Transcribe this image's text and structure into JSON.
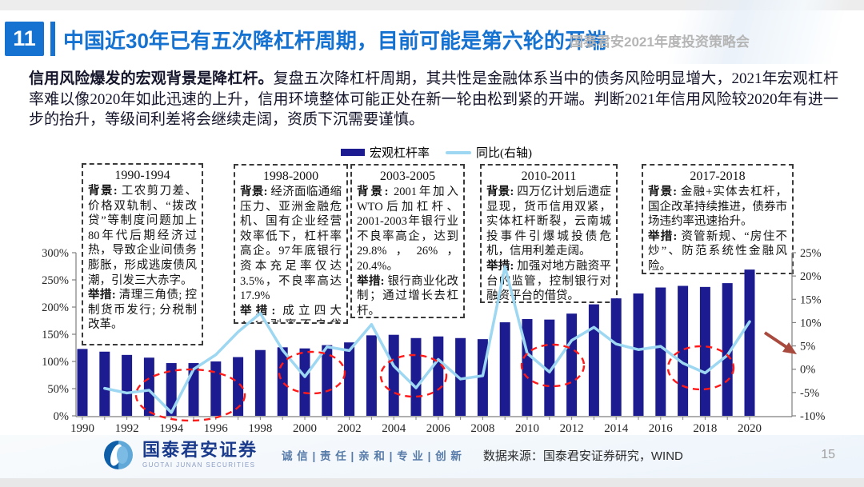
{
  "header": {
    "number": "11",
    "title": "中国近30年已有五次降杠杆周期，目前可能是第六轮的开端",
    "conference": "国泰君安2021年度投资策略会"
  },
  "intro": {
    "lead": "信用风险爆发的宏观背景是降杠杆。",
    "body": "复盘五次降杠杆周期，其共性是金融体系当中的债务风险明显增大，2021年宏观杠杆率难以像2020年如此迅速的上升，信用环境整体可能正处在新一轮由松到紧的开端。判断2021年信用风险较2020年有进一步的抬升，等级间利差将会继续走阔，资质下沉需要谨慎。"
  },
  "chart_data": {
    "type": "bar",
    "title": "",
    "x": [
      1990,
      1991,
      1992,
      1993,
      1994,
      1995,
      1996,
      1997,
      1998,
      1999,
      2000,
      2001,
      2002,
      2003,
      2004,
      2005,
      2006,
      2007,
      2008,
      2009,
      2010,
      2011,
      2012,
      2013,
      2014,
      2015,
      2016,
      2017,
      2018,
      2019,
      2020
    ],
    "series": [
      {
        "name": "宏观杠杆率",
        "type": "bar",
        "axis": "left",
        "color": "#1c1c90",
        "values": [
          123,
          118,
          112,
          107,
          97,
          97,
          100,
          108,
          121,
          126,
          124,
          130,
          135,
          148,
          149,
          143,
          146,
          143,
          141,
          172,
          178,
          177,
          188,
          205,
          216,
          225,
          236,
          239,
          237,
          244,
          269
        ]
      },
      {
        "name": "同比(右轴)",
        "type": "line",
        "axis": "right",
        "color": "#9dd7f1",
        "values": [
          null,
          -4.1,
          -5.1,
          -4.5,
          -9.3,
          0.0,
          3.1,
          8.0,
          12.0,
          4.1,
          -1.6,
          4.8,
          4.0,
          9.6,
          0.7,
          -4.0,
          2.1,
          -2.1,
          -1.4,
          22.0,
          3.4,
          -0.6,
          6.2,
          9.0,
          5.4,
          4.2,
          4.9,
          1.3,
          -0.8,
          3.0,
          10.2
        ]
      }
    ],
    "left_axis": {
      "min": 0,
      "max": 300,
      "unit": "%",
      "ticks": [
        "0%",
        "50%",
        "100%",
        "150%",
        "200%",
        "250%",
        "300%"
      ]
    },
    "right_axis": {
      "min": -10,
      "max": 25,
      "unit": "%",
      "ticks": [
        "-10%",
        "-5%",
        "0%",
        "5%",
        "10%",
        "15%",
        "20%",
        "25%"
      ]
    },
    "x_tick_labels": [
      "1990",
      "1992",
      "1994",
      "1996",
      "1998",
      "2000",
      "2002",
      "2004",
      "2006",
      "2008",
      "2010",
      "2012",
      "2014",
      "2016",
      "2018",
      "2020"
    ],
    "grid": "off",
    "legend_position": "top-center"
  },
  "annotations": {
    "boxes": [
      {
        "period": "1990-1994",
        "background_label": "背景:",
        "background": "工农剪刀差、价格双轨制、“拨改贷”等制度问题加上80年代后期经济过热，导致企业间债务膨胀，形成逃废债风潮，引发三大赤字。",
        "measures_label": "举措:",
        "measures": "清理三角债; 控制货币发行; 分税制改革。"
      },
      {
        "period": "1998-2000",
        "background_label": "背景:",
        "background": "经济面临通缩压力、亚洲金融危机、国有企业经营效率低下，杠杆率高企。97年底银行资本充足率仅达3.5%，不良率高达17.9%",
        "measures_label": "举措:",
        "measures": "成立四大AMC剥离不良贷款。"
      },
      {
        "period": "2003-2005",
        "background_label": "背景:",
        "background": "2001年加入WTO后加杠杆、2001-2003年银行业不良率高企，达到29.8%，26%，20.4%。",
        "measures_label": "举措:",
        "measures": "银行商业化改制；通过增长去杠杆。"
      },
      {
        "period": "2010-2011",
        "background_label": "背景:",
        "background": "四万亿计划后遗症显现，货币信用双紧，实体杠杆断裂，云南城投事件引爆城投债危机，信用利差走阔。",
        "measures_label": "举措:",
        "measures": "加强对地方融资平台的监管，控制银行对融资平台的借贷。"
      },
      {
        "period": "2017-2018",
        "background_label": "背景:",
        "background": "金融+实体去杠杆，国企改革持续推进，债券市场违约率迅速抬升。",
        "measures_label": "举措:",
        "measures": "资管新规、“房住不炒”、防范系统性金融风险。"
      }
    ],
    "circled_periods": [
      "1992-1994",
      "1999-2000",
      "2004-2005",
      "2010-2011",
      "2017-2018"
    ],
    "ellipse_color": "#ff1a1a",
    "arrow_color": "#a94a3f"
  },
  "footer": {
    "brand": "国泰君安证券",
    "brand_en": "GUOTAI JUNAN SECURITIES",
    "slogan": "诚 信 | 责 任 | 亲 和 | 专 业 | 创 新",
    "source": "数据来源：国泰君安证券研究，WIND",
    "page": "15"
  }
}
